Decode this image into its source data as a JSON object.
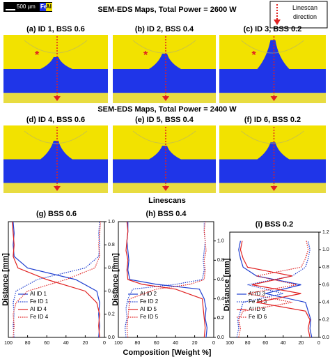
{
  "figure": {
    "title_top": "SEM-EDS Maps, Total Power = 2600 W",
    "title_bottom": "SEM-EDS Maps, Total Power = 2400 W",
    "linescans_title": "Linescans",
    "scale_bar": "500 µm",
    "legend_fe": "Fe",
    "legend_al": "Al",
    "linescan_legend": "Linescan direction",
    "xlabel": "Composition [Weight %]",
    "panels": [
      {
        "label": "(a) ID 1, BSS 0.6",
        "marker": "*"
      },
      {
        "label": "(b) ID 2, BSS 0.4",
        "marker": "*"
      },
      {
        "label": "(c) ID 3, BSS 0.2",
        "marker": "*"
      },
      {
        "label": "(d) ID 4, BSS 0.6"
      },
      {
        "label": "(e) ID 5, BSS 0.4"
      },
      {
        "label": "(f) ID 6, BSS 0.2"
      }
    ]
  },
  "chart_data": [
    {
      "type": "line",
      "title": "(g) BSS 0.6",
      "ylabel": "Distance [mm]",
      "y": [
        0,
        0.1,
        0.2,
        0.3,
        0.4,
        0.5,
        0.6,
        0.7,
        0.8,
        0.9,
        1.0
      ],
      "xlim": [
        100,
        0
      ],
      "xticks": [
        100,
        80,
        60,
        40,
        20,
        0
      ],
      "ylim": [
        0,
        1.0
      ],
      "yticks": [
        {
          "value": 0,
          "label": "0.0"
        },
        0.2,
        0.4,
        0.6,
        0.8,
        {
          "value": 1.0,
          "label": "1.0"
        }
      ],
      "series": [
        {
          "name": "Al ID 1",
          "color": "#1f3fd0",
          "style": "solid",
          "values": [
            6,
            5,
            6,
            5,
            8,
            30,
            80,
            94,
            95,
            94,
            95
          ]
        },
        {
          "name": "Fe ID 1",
          "color": "#1f3fd0",
          "style": "dotted",
          "values": [
            94,
            95,
            94,
            95,
            92,
            70,
            20,
            6,
            5,
            6,
            5
          ]
        },
        {
          "name": "Al ID 4",
          "color": "#e02020",
          "style": "solid",
          "values": [
            5,
            6,
            5,
            8,
            20,
            60,
            90,
            95,
            94,
            95,
            96
          ]
        },
        {
          "name": "Fe ID 4",
          "color": "#e02020",
          "style": "dotted",
          "values": [
            95,
            94,
            95,
            92,
            80,
            40,
            10,
            5,
            6,
            5,
            4
          ]
        }
      ]
    },
    {
      "type": "line",
      "title": "(h) BSS 0.4",
      "ylabel": "Distance [mm]",
      "y": [
        0,
        0.1,
        0.2,
        0.3,
        0.4,
        0.5,
        0.55,
        0.6,
        0.7,
        0.8,
        0.9,
        1.0,
        1.1,
        1.2
      ],
      "xlim": [
        100,
        0
      ],
      "xticks": [
        100,
        80,
        60,
        40,
        20,
        0
      ],
      "ylim": [
        0,
        1.2
      ],
      "yticks": [
        {
          "value": 0,
          "label": "0.0"
        },
        0.2,
        0.4,
        0.6,
        0.8,
        {
          "value": 1.0,
          "label": "1.0"
        },
        0.2
      ],
      "series": [
        {
          "name": "Al ID 2",
          "color": "#1f3fd0",
          "style": "solid",
          "values": [
            8,
            7,
            9,
            8,
            10,
            15,
            60,
            88,
            90,
            89,
            90,
            91,
            90,
            90
          ]
        },
        {
          "name": "Fe ID 2",
          "color": "#1f3fd0",
          "style": "dotted",
          "values": [
            92,
            93,
            91,
            92,
            90,
            85,
            40,
            12,
            10,
            11,
            10,
            9,
            10,
            10
          ]
        },
        {
          "name": "Al ID 5",
          "color": "#e02020",
          "style": "solid",
          "values": [
            10,
            9,
            10,
            11,
            12,
            40,
            75,
            90,
            91,
            90,
            92,
            91,
            90,
            91
          ]
        },
        {
          "name": "Fe ID 5",
          "color": "#e02020",
          "style": "dotted",
          "values": [
            90,
            91,
            90,
            89,
            88,
            60,
            25,
            10,
            9,
            10,
            8,
            9,
            10,
            9
          ]
        }
      ]
    },
    {
      "type": "line",
      "title": "(i) BSS 0.2",
      "ylabel": "Distance [mm]",
      "y": [
        0,
        0.1,
        0.2,
        0.3,
        0.4,
        0.5,
        0.6,
        0.7,
        0.8,
        0.9,
        1.0,
        1.1
      ],
      "xlim": [
        100,
        0
      ],
      "xticks": [
        100,
        80,
        60,
        40,
        20,
        0
      ],
      "ylim": [
        0,
        1.2
      ],
      "yticks": [
        {
          "value": 0,
          "label": "0.0"
        },
        0.2,
        0.4,
        0.6,
        0.8,
        {
          "value": 1.0,
          "label": "1.0"
        },
        1.2
      ],
      "series": [
        {
          "name": "Al ID 3",
          "color": "#1f3fd0",
          "style": "solid",
          "values": [
            8,
            10,
            9,
            12,
            15,
            60,
            20,
            70,
            85,
            88,
            90,
            88
          ]
        },
        {
          "name": "Fe ID 3",
          "color": "#1f3fd0",
          "style": "dotted",
          "values": [
            92,
            90,
            91,
            88,
            85,
            40,
            80,
            30,
            15,
            12,
            10,
            12
          ]
        },
        {
          "name": "Al ID 6",
          "color": "#e02020",
          "style": "solid",
          "values": [
            10,
            12,
            10,
            15,
            70,
            20,
            75,
            30,
            80,
            85,
            88,
            86
          ]
        },
        {
          "name": "Fe ID 6",
          "color": "#e02020",
          "style": "dotted",
          "values": [
            90,
            88,
            90,
            85,
            30,
            80,
            25,
            70,
            20,
            15,
            12,
            14
          ]
        }
      ]
    }
  ]
}
